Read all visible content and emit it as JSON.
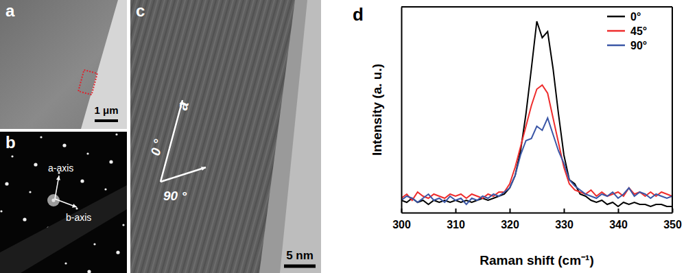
{
  "chart_data": {
    "type": "line",
    "annotations": [
      "d"
    ],
    "x_label": "Raman shift (cm⁻¹)",
    "y_label": "Intensity (a. u.)",
    "x": [
      300,
      301,
      302,
      303,
      304,
      305,
      306,
      307,
      308,
      309,
      310,
      311,
      312,
      313,
      314,
      315,
      316,
      317,
      318,
      319,
      320,
      321,
      322,
      323,
      324,
      325,
      326,
      327,
      328,
      329,
      330,
      331,
      332,
      333,
      334,
      335,
      336,
      337,
      338,
      339,
      340,
      341,
      342,
      343,
      344,
      345,
      346,
      347,
      348,
      349,
      350
    ],
    "series": [
      {
        "name": "0°",
        "color": "#000000",
        "values": [
          6,
          5,
          7,
          5,
          6,
          4,
          6,
          5,
          6,
          5,
          6,
          5,
          6,
          5,
          6,
          7,
          6,
          7,
          8,
          9,
          12,
          18,
          30,
          48,
          70,
          93,
          85,
          88,
          70,
          48,
          28,
          16,
          14,
          9,
          8,
          6,
          5,
          6,
          4,
          5,
          3,
          5,
          4,
          5,
          4,
          4,
          3,
          4,
          4,
          3,
          3
        ]
      },
      {
        "name": "45°",
        "color": "#ee2c2c",
        "values": [
          7,
          9,
          6,
          10,
          8,
          7,
          9,
          8,
          7,
          9,
          8,
          9,
          7,
          9,
          8,
          7,
          9,
          8,
          10,
          10,
          14,
          22,
          32,
          42,
          52,
          60,
          62,
          58,
          46,
          34,
          22,
          14,
          11,
          10,
          9,
          11,
          8,
          10,
          8,
          9,
          10,
          8,
          12,
          9,
          10,
          8,
          10,
          8,
          10,
          9,
          8
        ]
      },
      {
        "name": "90°",
        "color": "#3a56a6",
        "values": [
          6,
          8,
          7,
          5,
          7,
          9,
          6,
          7,
          5,
          8,
          6,
          7,
          4,
          7,
          6,
          8,
          7,
          9,
          8,
          10,
          12,
          18,
          28,
          35,
          36,
          42,
          40,
          46,
          38,
          30,
          24,
          16,
          13,
          11,
          9,
          8,
          7,
          9,
          8,
          10,
          7,
          9,
          12,
          8,
          10,
          9,
          7,
          9,
          8,
          7,
          8
        ]
      }
    ],
    "xlim": [
      300,
      350
    ],
    "xticks": [
      300,
      310,
      320,
      330,
      340,
      350
    ],
    "ylim": [
      0,
      100
    ],
    "tick_labels": "x",
    "legend": "upper right"
  },
  "panels": [
    {
      "label": "a",
      "scale_bar": "1 μm"
    },
    {
      "label": "b",
      "annotations": [
        "a-axis",
        "b-axis"
      ]
    },
    {
      "label": "c",
      "annotations": [
        "a",
        "0 °",
        "90 °"
      ],
      "scale_bar": "5 nm"
    }
  ]
}
